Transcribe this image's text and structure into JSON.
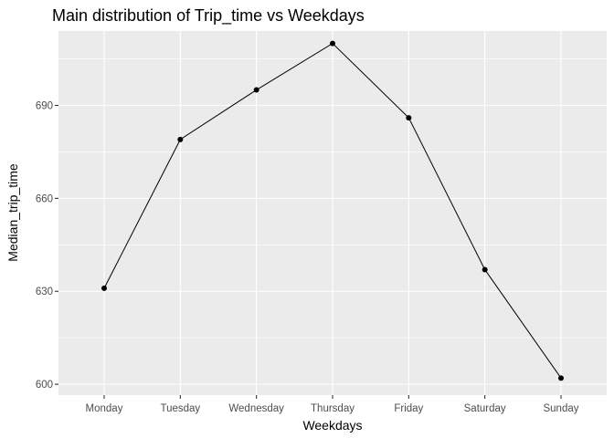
{
  "chart_data": {
    "type": "line",
    "title": "Main distribution of Trip_time vs Weekdays",
    "xlabel": "Weekdays",
    "ylabel": "Median_trip_time",
    "categories": [
      "Monday",
      "Tuesday",
      "Wednesday",
      "Thursday",
      "Friday",
      "Saturday",
      "Sunday"
    ],
    "values": [
      631,
      679,
      695,
      710,
      686,
      637,
      602
    ],
    "ylim": [
      596.5,
      714
    ],
    "yticks": [
      "600",
      "630",
      "660",
      "690"
    ],
    "grid": true,
    "colors": {
      "panel": "#ebebeb",
      "grid": "#ffffff",
      "line": "#000000"
    }
  }
}
